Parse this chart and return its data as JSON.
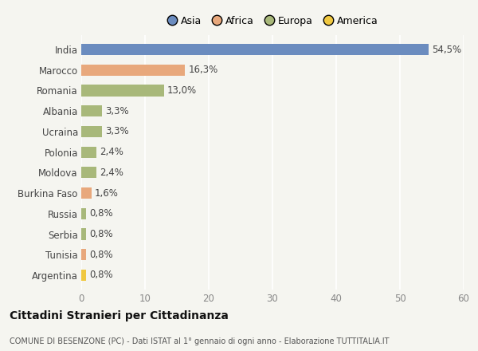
{
  "countries": [
    "India",
    "Marocco",
    "Romania",
    "Albania",
    "Ucraina",
    "Polonia",
    "Moldova",
    "Burkina Faso",
    "Russia",
    "Serbia",
    "Tunisia",
    "Argentina"
  ],
  "values": [
    54.5,
    16.3,
    13.0,
    3.3,
    3.3,
    2.4,
    2.4,
    1.6,
    0.8,
    0.8,
    0.8,
    0.8
  ],
  "labels": [
    "54,5%",
    "16,3%",
    "13,0%",
    "3,3%",
    "3,3%",
    "2,4%",
    "2,4%",
    "1,6%",
    "0,8%",
    "0,8%",
    "0,8%",
    "0,8%"
  ],
  "continents": [
    "Asia",
    "Africa",
    "Europa",
    "Europa",
    "Europa",
    "Europa",
    "Europa",
    "Africa",
    "Europa",
    "Europa",
    "Africa",
    "America"
  ],
  "colors": {
    "Asia": "#6b8cbf",
    "Africa": "#e8a87c",
    "Europa": "#a8b87a",
    "America": "#f0c840"
  },
  "legend_labels": [
    "Asia",
    "Africa",
    "Europa",
    "America"
  ],
  "legend_colors": [
    "#6b8cbf",
    "#e8a87c",
    "#a8b87a",
    "#f0c840"
  ],
  "xlim": [
    0,
    60
  ],
  "xticks": [
    0,
    10,
    20,
    30,
    40,
    50,
    60
  ],
  "title": "Cittadini Stranieri per Cittadinanza",
  "subtitle": "COMUNE DI BESENZONE (PC) - Dati ISTAT al 1° gennaio di ogni anno - Elaborazione TUTTITALIA.IT",
  "background_color": "#f5f5f0",
  "grid_color": "#ffffff",
  "bar_height": 0.55,
  "label_fontsize": 8.5,
  "ytick_fontsize": 8.5,
  "xtick_fontsize": 8.5,
  "title_fontsize": 10,
  "subtitle_fontsize": 7
}
